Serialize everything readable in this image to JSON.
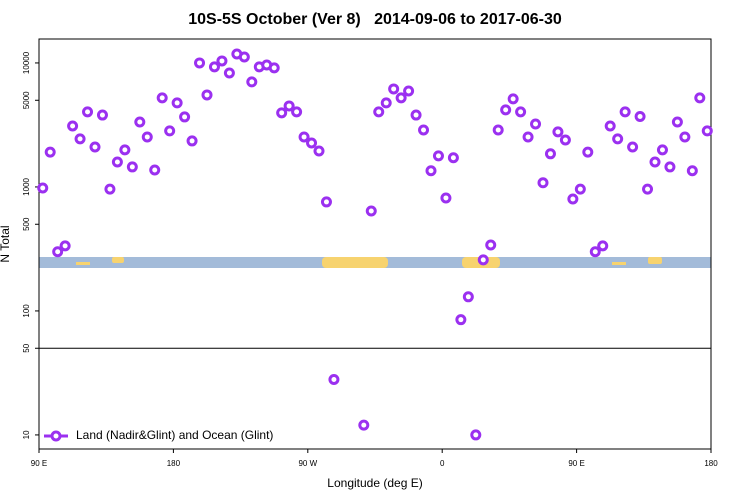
{
  "chart_data": {
    "type": "scatter",
    "title": "10S-5S October (Ver 8)   2014-09-06 to 2017-06-30",
    "xlabel": "Longitude (deg E)",
    "ylabel": "N Total",
    "log_y": true,
    "legend": "lower left",
    "hline": 50,
    "xlim": [
      -270,
      180
    ],
    "ylim": [
      7.7,
      15600
    ],
    "xticks": [
      {
        "value": -270,
        "label": "90 E"
      },
      {
        "value": -180,
        "label": "180"
      },
      {
        "value": -90,
        "label": "90 W"
      },
      0,
      {
        "value": 90,
        "label": "90 E"
      },
      180
    ],
    "yticks": [
      10,
      50,
      100,
      500,
      1000,
      5000,
      10000
    ],
    "series": [
      {
        "name": "Land (Nadir&Glint) and Ocean (Glint)",
        "color": "#9b30f0",
        "x": [
          -267.5,
          -262.5,
          -257.5,
          -252.5,
          -247.5,
          -242.5,
          -237.5,
          -232.5,
          -227.5,
          -222.5,
          -217.5,
          -212.5,
          -207.5,
          -202.5,
          -197.5,
          -192.5,
          -187.5,
          -182.5,
          -177.5,
          -172.5,
          -167.5,
          -162.5,
          -157.5,
          -152.5,
          -147.5,
          -142.5,
          -137.5,
          -132.5,
          -127.5,
          -122.5,
          -117.5,
          -112.5,
          -107.5,
          -102.5,
          -97.5,
          -92.5,
          -87.5,
          -82.5,
          -77.5,
          -72.5,
          -52.5,
          -47.5,
          -42.5,
          -37.5,
          -32.5,
          -27.5,
          -22.5,
          -17.5,
          -12.5,
          -7.5,
          -2.5,
          2.5,
          7.5,
          12.5,
          17.5,
          22.5,
          27.5,
          32.5,
          37.5,
          42.5,
          47.5,
          52.5,
          57.5,
          62.5,
          67.5,
          72.5,
          77.5,
          82.5,
          87.5,
          92.5,
          97.5,
          102.5,
          107.5,
          112.5,
          117.5,
          122.5,
          127.5,
          132.5,
          137.5,
          142.5,
          147.5,
          152.5,
          157.5,
          162.5,
          167.5,
          172.5,
          177.5
        ],
        "values": [
          980,
          1910,
          300,
          335,
          3100,
          2440,
          4030,
          2100,
          3800,
          960,
          1590,
          1990,
          1450,
          3340,
          2530,
          1370,
          5230,
          2830,
          4760,
          3670,
          2350,
          10000,
          5520,
          9290,
          10380,
          8300,
          11800,
          11170,
          7030,
          9290,
          9630,
          9120,
          3960,
          4500,
          4030,
          2530,
          2260,
          1950,
          757,
          28,
          12,
          640,
          4030,
          4760,
          6170,
          5230,
          5940,
          3800,
          2880,
          1350,
          1780,
          815,
          1720,
          85,
          130,
          10,
          258,
          340,
          2880,
          4180,
          5130,
          4030,
          2530,
          3220,
          1080,
          1850,
          2780,
          2390,
          800,
          960,
          1910,
          300,
          335,
          3100,
          2440,
          4030,
          2100,
          3700,
          960,
          1590,
          1990,
          1450,
          3340,
          2530,
          1350,
          5230,
          2830
        ]
      }
    ]
  }
}
